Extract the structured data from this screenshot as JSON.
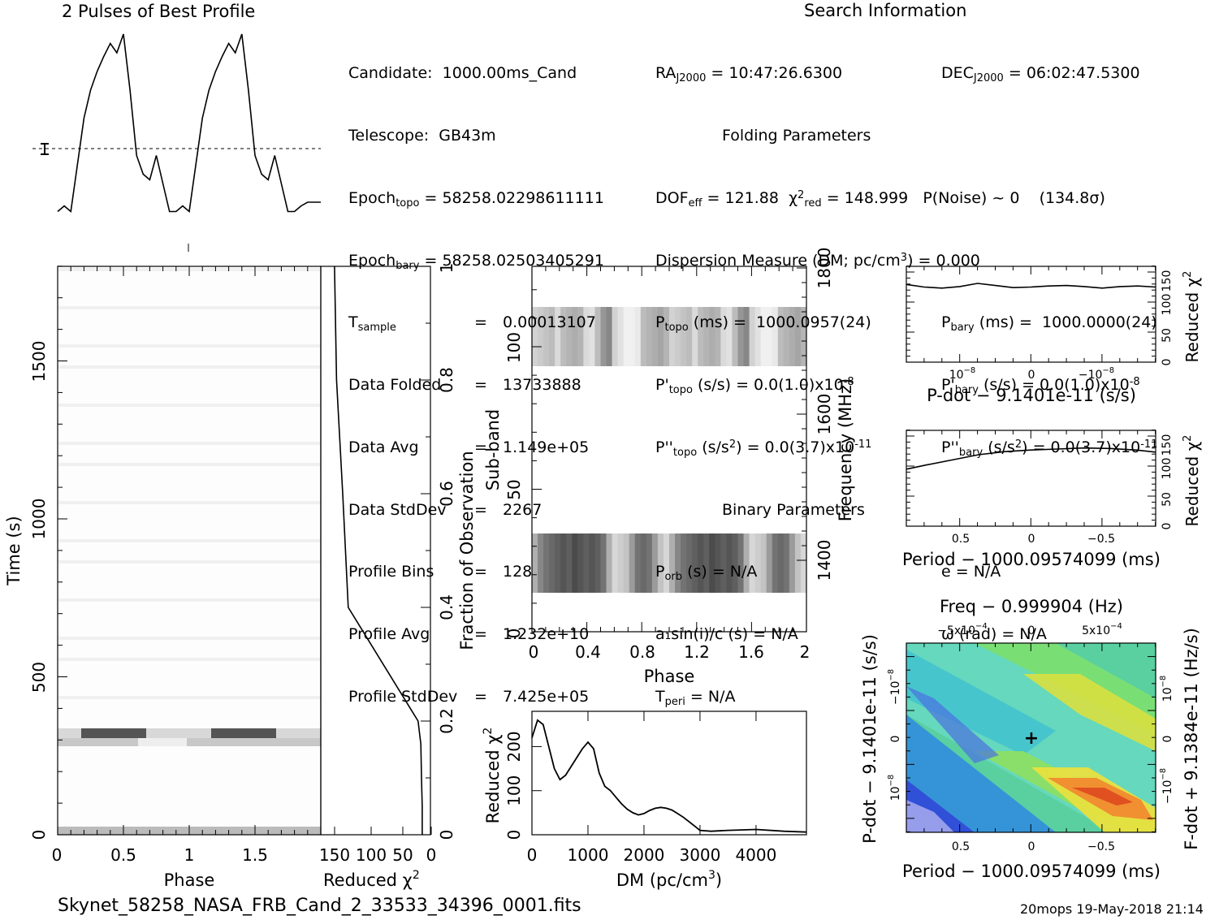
{
  "app_title": "2 Pulses of Best Profile",
  "search_info_title": "Search Information",
  "footer": {
    "filename": "Skynet_58258_NASA_FRB_Cand_2_33533_34396_0001.fits",
    "stamp": "20mops 19-May-2018 21:14"
  },
  "info_left": [
    {
      "label": "Candidate:",
      "value": "1000.00ms_Cand"
    },
    {
      "label": "Telescope:",
      "value": "GB43m"
    },
    {
      "label": "Epoch",
      "sub": "topo",
      "value": "= 58258.02298611111"
    },
    {
      "label": "Epoch",
      "sub": "bary",
      "value": "= 58258.02503405291"
    },
    {
      "label": "T",
      "sub": "sample",
      "value": "0.00013107"
    },
    {
      "label": "Data Folded",
      "value": "13733888"
    },
    {
      "label": "Data Avg",
      "value": "1.149e+05"
    },
    {
      "label": "Data StdDev",
      "value": "2267"
    },
    {
      "label": "Profile Bins",
      "value": "128"
    },
    {
      "label": "Profile Avg",
      "value": "1.232e+10"
    },
    {
      "label": "Profile StdDev",
      "value": "7.425e+05"
    }
  ],
  "info_mid": {
    "ra": "= 10:47:26.6300",
    "dec": "= 06:02:47.5300",
    "folding_title": "Folding Parameters",
    "dof": "= 121.88",
    "chi2": "= 148.999",
    "pnoise": "P(Noise) ~ 0",
    "sigma": "(134.8σ)",
    "dm_line": "Dispersion Measure (DM; pc/cm",
    "dm_value": ") = 0.000",
    "ptopo": "(ms) =  1000.0957(24)",
    "pbary": "(ms) =  1000.0000(24)",
    "pdtopo": "(s/s) = 0.0(1.0)x10",
    "pdtopo_exp": "-8",
    "pdbary": "(s/s) = 0.0(1.0)x10",
    "pdbary_exp": "-8",
    "pddtopo": "= 0.0(3.7)x10",
    "pddtopo_exp": "-11",
    "pddbary": "= 0.0(3.7)x10",
    "pddbary_exp": "-11",
    "binary_title": "Binary Parameters",
    "porb": "(s) = N/A",
    "e": "e = N/A",
    "a1": "a₁sin(i)/c (s) = N/A",
    "omega": "ω (rad) = N/A",
    "tperi": "= N/A"
  },
  "chart_data": [
    {
      "type": "line",
      "title": "2 Pulses of Best Profile",
      "x": [
        0,
        0.05,
        0.1,
        0.15,
        0.2,
        0.25,
        0.3,
        0.35,
        0.4,
        0.45,
        0.5,
        0.55,
        0.6,
        0.65,
        0.7,
        0.75,
        0.8,
        0.85,
        0.9,
        0.95,
        1.0,
        1.05,
        1.1,
        1.15,
        1.2,
        1.25,
        1.3,
        1.35,
        1.4,
        1.45,
        1.5,
        1.55,
        1.6,
        1.65,
        1.7,
        1.75,
        1.8,
        1.85,
        1.9,
        1.95,
        2.0
      ],
      "y": [
        0.05,
        0.08,
        0.05,
        0.3,
        0.55,
        0.7,
        0.8,
        0.88,
        0.95,
        0.9,
        1.0,
        0.7,
        0.35,
        0.25,
        0.22,
        0.35,
        0.2,
        0.05,
        0.05,
        0.08,
        0.05,
        0.3,
        0.55,
        0.7,
        0.8,
        0.88,
        0.95,
        0.9,
        1.0,
        0.7,
        0.35,
        0.25,
        0.22,
        0.35,
        0.2,
        0.05,
        0.05,
        0.08,
        0.1,
        0.1,
        0.1
      ]
    },
    {
      "type": "heatmap",
      "xlabel": "Phase",
      "ylabel": "Time (s)",
      "xticks": [
        "0",
        "0.5",
        "1",
        "1.5"
      ],
      "yticks": [
        "0",
        "500",
        "1000",
        "1500"
      ],
      "xlim": [
        0,
        2
      ],
      "ylim": [
        0,
        1800
      ]
    },
    {
      "type": "line",
      "xlabel": "Reduced χ²",
      "ylabel": "Fraction of Observation",
      "xticks": [
        "150",
        "100",
        "50",
        "0"
      ],
      "yticks": [
        "0",
        "0.2",
        "0.4",
        "0.6",
        "0.8",
        "1"
      ],
      "x": [
        140,
        137,
        128,
        120,
        18,
        15,
        14,
        13,
        12,
        12
      ],
      "y": [
        1.0,
        0.8,
        0.6,
        0.4,
        0.2,
        0.17,
        0.16,
        0.1,
        0.05,
        0.0
      ]
    },
    {
      "type": "heatmap",
      "xlabel": "Phase",
      "ylabel": "Sub-band",
      "ylabel2": "Frequency (MHz)",
      "xticks": [
        "0",
        "0.4",
        "0.8",
        "1.2",
        "1.6",
        "2"
      ],
      "yticks": [
        "0",
        "50",
        "100"
      ],
      "yticks2": [
        "1400",
        "1600",
        "1800"
      ],
      "xlim": [
        0,
        2
      ],
      "ylim": [
        0,
        128
      ]
    },
    {
      "type": "line",
      "xlabel": "DM (pc/cm³)",
      "ylabel": "Reduced χ²",
      "xticks": [
        "0",
        "1000",
        "2000",
        "3000",
        "4000"
      ],
      "yticks": [
        "0",
        "100",
        "200"
      ],
      "xlim": [
        0,
        4900
      ],
      "ylim": [
        0,
        280
      ],
      "x": [
        0,
        100,
        200,
        300,
        400,
        500,
        600,
        700,
        800,
        900,
        1000,
        1100,
        1200,
        1300,
        1400,
        1500,
        1600,
        1700,
        1800,
        1900,
        2000,
        2100,
        2200,
        2300,
        2400,
        2500,
        2600,
        2700,
        2800,
        2900,
        3000,
        3200,
        3500,
        4000,
        4500,
        4900
      ],
      "y": [
        220,
        260,
        250,
        200,
        150,
        125,
        135,
        155,
        175,
        195,
        210,
        195,
        140,
        110,
        100,
        85,
        70,
        58,
        50,
        45,
        48,
        55,
        60,
        62,
        60,
        56,
        48,
        40,
        30,
        20,
        10,
        8,
        10,
        12,
        8,
        6
      ]
    },
    {
      "type": "line",
      "xlabel": "P-dot − 9.1401e-11 (s/s)",
      "ylabel": "Reduced χ²",
      "yticks": [
        "0",
        "50",
        "100",
        "150"
      ],
      "x": [
        -1.4,
        -1.2,
        -1.0,
        -0.8,
        -0.6,
        -0.4,
        -0.2,
        0,
        0.2,
        0.4,
        0.6,
        0.8,
        1.0,
        1.2,
        1.4
      ],
      "y": [
        150,
        145,
        143,
        146,
        152,
        148,
        144,
        145,
        147,
        148,
        146,
        143,
        146,
        147,
        145
      ]
    },
    {
      "type": "line",
      "xlabel": "Period − 1000.09574099 (ms)",
      "ylabel": "Reduced χ²",
      "xticks": [
        "0.5",
        "0",
        "−0.5"
      ],
      "yticks": [
        "0",
        "50",
        "100",
        "150"
      ],
      "x": [
        0.95,
        0.8,
        0.6,
        0.4,
        0.2,
        0,
        -0.2,
        -0.4,
        -0.6,
        -0.8,
        -0.95
      ],
      "y": [
        110,
        118,
        128,
        138,
        144,
        147,
        149,
        151,
        150,
        147,
        143
      ]
    },
    {
      "type": "heatmap",
      "xlabel": "Period − 1000.09574099 (ms)",
      "ylabel": "P-dot − 9.1401e-11 (s/s)",
      "xlabel2": "Freq − 0.999904 (Hz)",
      "ylabel2": "F-dot + 9.1384e-11 (Hz/s)",
      "xticks": [
        "0.5",
        "0",
        "−0.5"
      ],
      "xticks2": [
        "−5x10",
        "0",
        "5x10"
      ],
      "xticks2_exp": "−4"
    }
  ],
  "tick_text": {
    "sup_m8": "−8",
    "m10": "−10",
    "m10m8": "−10",
    "ten8": "10",
    "zero": "0"
  }
}
